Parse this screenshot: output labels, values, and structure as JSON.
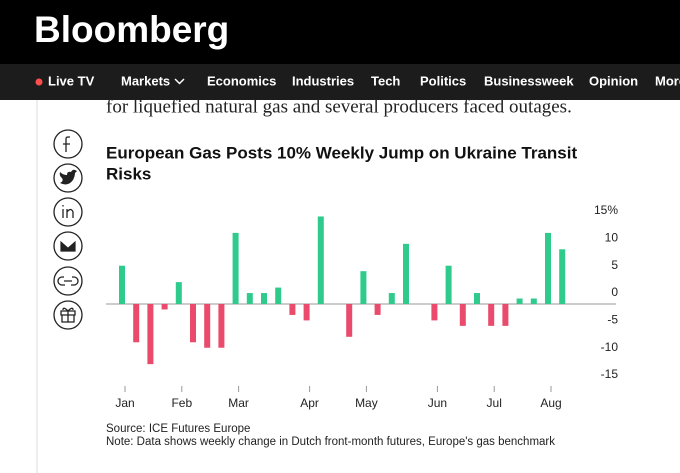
{
  "header": {
    "brand": "Bloomberg"
  },
  "nav": {
    "items": [
      "Live TV",
      "Markets",
      "Economics",
      "Industries",
      "Tech",
      "Politics",
      "Businessweek",
      "Opinion",
      "More"
    ]
  },
  "article": {
    "text": "for liquefied natural gas and several producers faced outages."
  },
  "chart_data": {
    "type": "bar",
    "title": [
      "European Gas Posts 10% Weekly Jump on Ukraine Transit",
      "Risks"
    ],
    "categories": [
      "Jan",
      null,
      null,
      null,
      "Feb",
      null,
      null,
      null,
      "Mar",
      null,
      null,
      null,
      null,
      "Apr",
      null,
      null,
      null,
      "May",
      null,
      null,
      null,
      null,
      "Jun",
      null,
      null,
      null,
      "Jul",
      null,
      null,
      null,
      "Aug",
      null
    ],
    "values": [
      7,
      -7,
      -11,
      -1,
      4,
      -7,
      -8,
      -8,
      13,
      2,
      2,
      3,
      -2,
      -3,
      16,
      null,
      -6,
      6,
      -2,
      2,
      11,
      null,
      -3,
      7,
      -4,
      2,
      -4,
      -4,
      1,
      1,
      13,
      10
    ],
    "positive_color": "#2fcb8c",
    "negative_color": "#ea4a6c",
    "ylim": [
      -16,
      17
    ],
    "yticks": [
      {
        "value": 15,
        "label": "15%"
      },
      10,
      5,
      0,
      -5,
      -10,
      -15
    ],
    "source": "Source: ICE Futures Europe",
    "note": "Note: Data shows weekly change in Dutch front-month futures, Europe's gas benchmark"
  }
}
